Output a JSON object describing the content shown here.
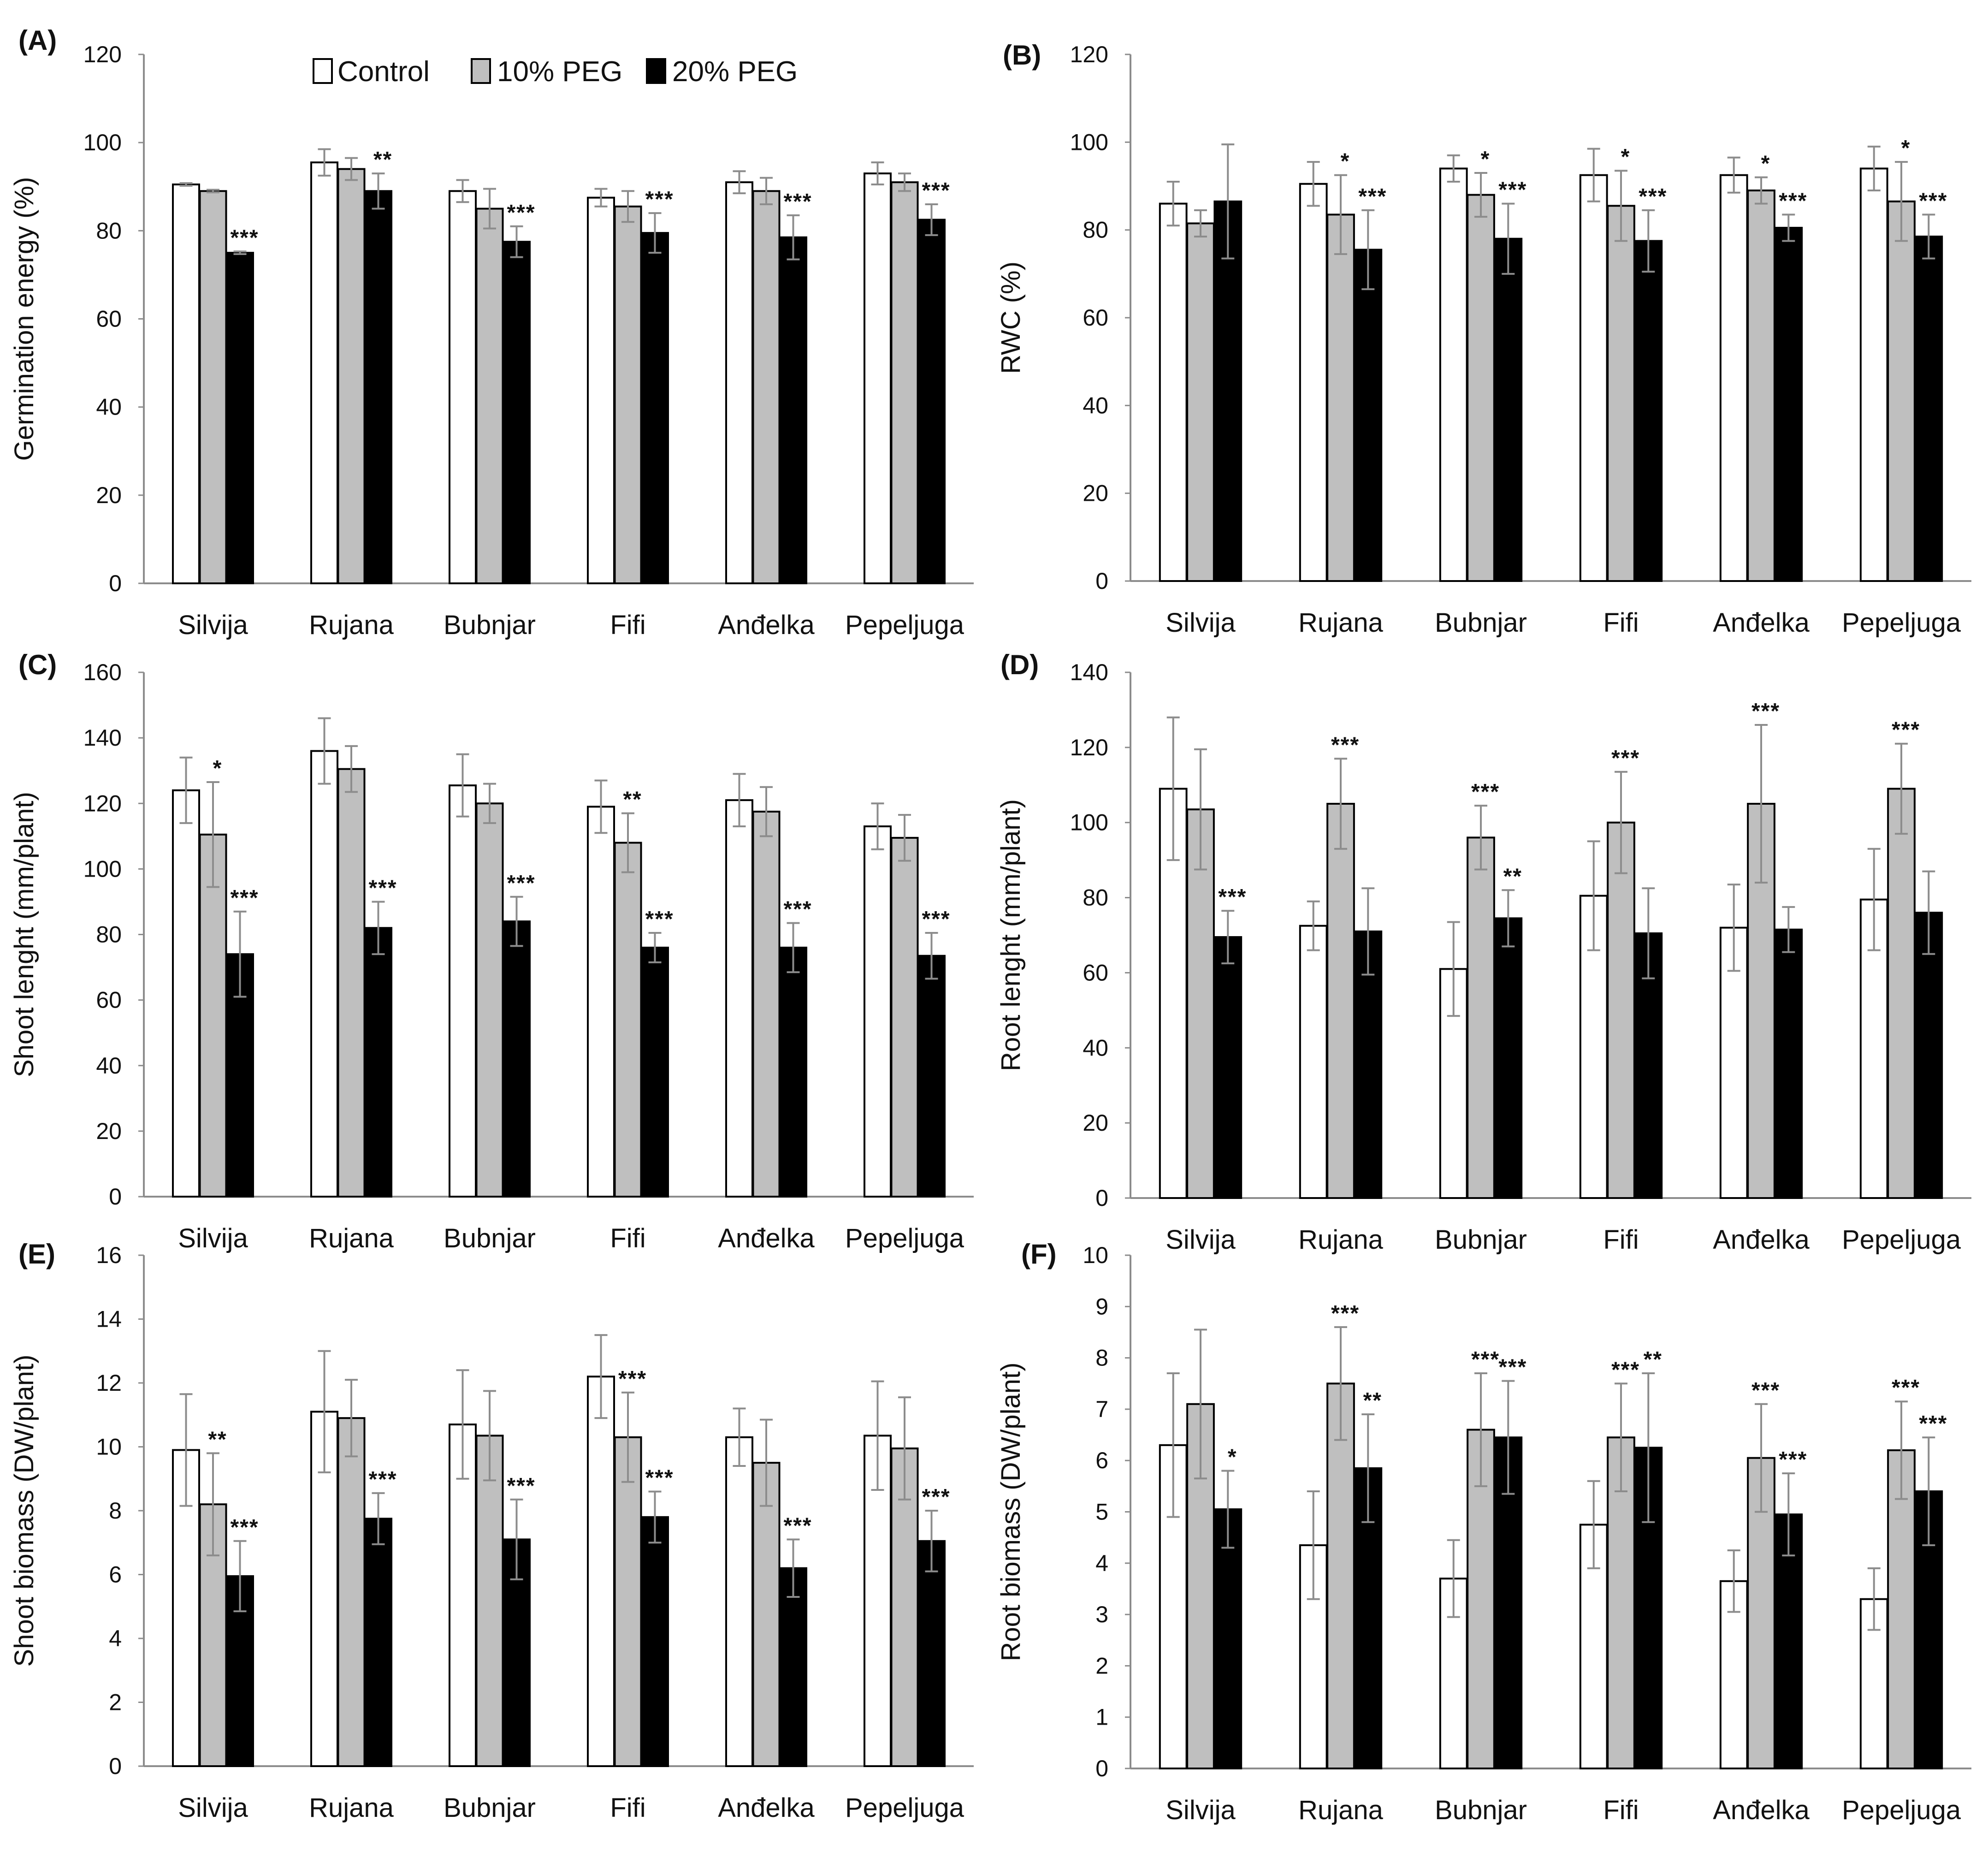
{
  "colors": {
    "control": "#ffffff",
    "peg10": "#bfbfbf",
    "peg20": "#000000",
    "outline": "#000000",
    "errorbar": "#8c8c8c"
  },
  "legend": {
    "entries": [
      {
        "key": "control",
        "label": "Control"
      },
      {
        "key": "peg10",
        "label": "10% PEG"
      },
      {
        "key": "peg20",
        "label": "20% PEG"
      }
    ]
  },
  "chart_data": [
    {
      "panel": "(A)",
      "type": "bar",
      "title": "",
      "xlabel": "",
      "ylabel": "Germination energy (%)",
      "ylim": [
        0,
        120
      ],
      "ytick_step": 20,
      "ytick_labels": [
        "0",
        "20",
        "40",
        "60",
        "80",
        "100",
        "120"
      ],
      "categories": [
        "Silvija",
        "Rujana",
        "Bubnjar",
        "Fifi",
        "Anđelka",
        "Pepeljuga"
      ],
      "series": [
        {
          "name": "Control",
          "key": "control",
          "values": [
            90.5,
            95.5,
            89,
            87.5,
            91,
            93
          ],
          "errors": [
            0.3,
            3,
            2.5,
            2,
            2.5,
            2.5
          ],
          "stars": [
            "",
            "",
            "",
            "",
            "",
            ""
          ]
        },
        {
          "name": "10% PEG",
          "key": "peg10",
          "values": [
            89,
            94,
            85,
            85.5,
            89,
            91
          ],
          "errors": [
            0.3,
            2.5,
            4.5,
            3.5,
            3,
            2
          ],
          "stars": [
            "",
            "",
            "",
            "",
            "",
            ""
          ]
        },
        {
          "name": "20% PEG",
          "key": "peg20",
          "values": [
            75,
            89,
            77.5,
            79.5,
            78.5,
            82.5
          ],
          "errors": [
            0.3,
            4,
            3.5,
            4.5,
            5,
            3.5
          ],
          "stars": [
            "***",
            "**",
            "***",
            "***",
            "***",
            "***"
          ]
        }
      ]
    },
    {
      "panel": "(B)",
      "type": "bar",
      "title": "",
      "xlabel": "",
      "ylabel": "RWC (%)",
      "ylim": [
        0,
        120
      ],
      "ytick_step": 20,
      "ytick_labels": [
        "0",
        "20",
        "40",
        "60",
        "80",
        "100",
        "120"
      ],
      "categories": [
        "Silvija",
        "Rujana",
        "Bubnjar",
        "Fifi",
        "Anđelka",
        "Pepeljuga"
      ],
      "series": [
        {
          "name": "Control",
          "key": "control",
          "values": [
            86,
            90.5,
            94,
            92.5,
            92.5,
            94
          ],
          "errors": [
            5,
            5,
            3,
            6,
            4,
            5
          ],
          "stars": [
            "",
            "",
            "",
            "",
            "",
            ""
          ]
        },
        {
          "name": "10% PEG",
          "key": "peg10",
          "values": [
            81.5,
            83.5,
            88,
            85.5,
            89,
            86.5
          ],
          "errors": [
            3,
            9,
            5,
            8,
            3,
            9
          ],
          "stars": [
            "",
            "*",
            "*",
            "*",
            "*",
            "*"
          ]
        },
        {
          "name": "20% PEG",
          "key": "peg20",
          "values": [
            86.5,
            75.5,
            78,
            77.5,
            80.5,
            78.5
          ],
          "errors": [
            13,
            9,
            8,
            7,
            3,
            5
          ],
          "stars": [
            "",
            "***",
            "***",
            "***",
            "***",
            "***"
          ]
        }
      ]
    },
    {
      "panel": "(C)",
      "type": "bar",
      "title": "",
      "xlabel": "",
      "ylabel": "Shoot lenght (mm/plant)",
      "ylim": [
        0,
        160
      ],
      "ytick_step": 20,
      "ytick_labels": [
        "0",
        "20",
        "40",
        "60",
        "80",
        "100",
        "120",
        "140",
        "160"
      ],
      "categories": [
        "Silvija",
        "Rujana",
        "Bubnjar",
        "Fifi",
        "Anđelka",
        "Pepeljuga"
      ],
      "series": [
        {
          "name": "Control",
          "key": "control",
          "values": [
            124,
            136,
            125.5,
            119,
            121,
            113
          ],
          "errors": [
            10,
            10,
            9.5,
            8,
            8,
            7
          ],
          "stars": [
            "",
            "",
            "",
            "",
            "",
            ""
          ]
        },
        {
          "name": "10% PEG",
          "key": "peg10",
          "values": [
            110.5,
            130.5,
            120,
            108,
            117.5,
            109.5
          ],
          "errors": [
            16,
            7,
            6,
            9,
            7.5,
            7
          ],
          "stars": [
            "*",
            "",
            "",
            "**",
            "",
            ""
          ]
        },
        {
          "name": "20% PEG",
          "key": "peg20",
          "values": [
            74,
            82,
            84,
            76,
            76,
            73.5
          ],
          "errors": [
            13,
            8,
            7.5,
            4.5,
            7.5,
            7
          ],
          "stars": [
            "***",
            "***",
            "***",
            "***",
            "***",
            "***"
          ]
        }
      ]
    },
    {
      "panel": "(D)",
      "type": "bar",
      "title": "",
      "xlabel": "",
      "ylabel": "Root lenght (mm/plant)",
      "ylim": [
        0,
        140
      ],
      "ytick_step": 20,
      "ytick_labels": [
        "0",
        "20",
        "40",
        "60",
        "80",
        "100",
        "120",
        "140"
      ],
      "categories": [
        "Silvija",
        "Rujana",
        "Bubnjar",
        "Fifi",
        "Anđelka",
        "Pepeljuga"
      ],
      "series": [
        {
          "name": "Control",
          "key": "control",
          "values": [
            109,
            72.5,
            61,
            80.5,
            72,
            79.5
          ],
          "errors": [
            19,
            6.5,
            12.5,
            14.5,
            11.5,
            13.5
          ],
          "stars": [
            "",
            "",
            "",
            "",
            "",
            ""
          ]
        },
        {
          "name": "10% PEG",
          "key": "peg10",
          "values": [
            103.5,
            105,
            96,
            100,
            105,
            109
          ],
          "errors": [
            16,
            12,
            8.5,
            13.5,
            21,
            12
          ],
          "stars": [
            "",
            "***",
            "***",
            "***",
            "***",
            "***"
          ]
        },
        {
          "name": "20% PEG",
          "key": "peg20",
          "values": [
            69.5,
            71,
            74.5,
            70.5,
            71.5,
            76
          ],
          "errors": [
            7,
            11.5,
            7.5,
            12,
            6,
            11
          ],
          "stars": [
            "***",
            "",
            "**",
            "",
            "",
            ""
          ]
        }
      ]
    },
    {
      "panel": "(E)",
      "type": "bar",
      "title": "",
      "xlabel": "",
      "ylabel": "Shoot biomass (DW/plant)",
      "ylim": [
        0,
        16
      ],
      "ytick_step": 2,
      "ytick_labels": [
        "0",
        "2",
        "4",
        "6",
        "8",
        "10",
        "12",
        "14",
        "16"
      ],
      "categories": [
        "Silvija",
        "Rujana",
        "Bubnjar",
        "Fifi",
        "Anđelka",
        "Pepeljuga"
      ],
      "series": [
        {
          "name": "Control",
          "key": "control",
          "values": [
            9.9,
            11.1,
            10.7,
            12.2,
            10.3,
            10.35
          ],
          "errors": [
            1.75,
            1.9,
            1.7,
            1.3,
            0.9,
            1.7
          ],
          "stars": [
            "",
            "",
            "",
            "",
            "",
            ""
          ]
        },
        {
          "name": "10% PEG",
          "key": "peg10",
          "values": [
            8.2,
            10.9,
            10.35,
            10.3,
            9.5,
            9.95
          ],
          "errors": [
            1.6,
            1.2,
            1.4,
            1.4,
            1.35,
            1.6
          ],
          "stars": [
            "**",
            "",
            "",
            "***",
            "",
            ""
          ]
        },
        {
          "name": "20% PEG",
          "key": "peg20",
          "values": [
            5.95,
            7.75,
            7.1,
            7.8,
            6.2,
            7.05
          ],
          "errors": [
            1.1,
            0.8,
            1.25,
            0.8,
            0.9,
            0.95
          ],
          "stars": [
            "***",
            "***",
            "***",
            "***",
            "***",
            "***"
          ]
        }
      ]
    },
    {
      "panel": "(F)",
      "type": "bar",
      "title": "",
      "xlabel": "",
      "ylabel": "Root biomass (DW/plant)",
      "ylim": [
        0,
        10
      ],
      "ytick_step": 1,
      "ytick_labels": [
        "0",
        "1",
        "2",
        "3",
        "4",
        "5",
        "6",
        "7",
        "8",
        "9",
        "10"
      ],
      "categories": [
        "Silvija",
        "Rujana",
        "Bubnjar",
        "Fifi",
        "Anđelka",
        "Pepeljuga"
      ],
      "series": [
        {
          "name": "Control",
          "key": "control",
          "values": [
            6.3,
            4.35,
            3.7,
            4.75,
            3.65,
            3.3
          ],
          "errors": [
            1.4,
            1.05,
            0.75,
            0.85,
            0.6,
            0.6
          ],
          "stars": [
            "",
            "",
            "",
            "",
            "",
            ""
          ]
        },
        {
          "name": "10% PEG",
          "key": "peg10",
          "values": [
            7.1,
            7.5,
            6.6,
            6.45,
            6.05,
            6.2
          ],
          "errors": [
            1.45,
            1.1,
            1.1,
            1.05,
            1.05,
            0.95
          ],
          "stars": [
            "",
            "***",
            "***",
            "***",
            "***",
            "***"
          ]
        },
        {
          "name": "20% PEG",
          "key": "peg20",
          "values": [
            5.05,
            5.85,
            6.45,
            6.25,
            4.95,
            5.4
          ],
          "errors": [
            0.75,
            1.05,
            1.1,
            1.45,
            0.8,
            1.05
          ],
          "stars": [
            "*",
            "**",
            "***",
            "**",
            "***",
            "***"
          ]
        }
      ]
    }
  ]
}
